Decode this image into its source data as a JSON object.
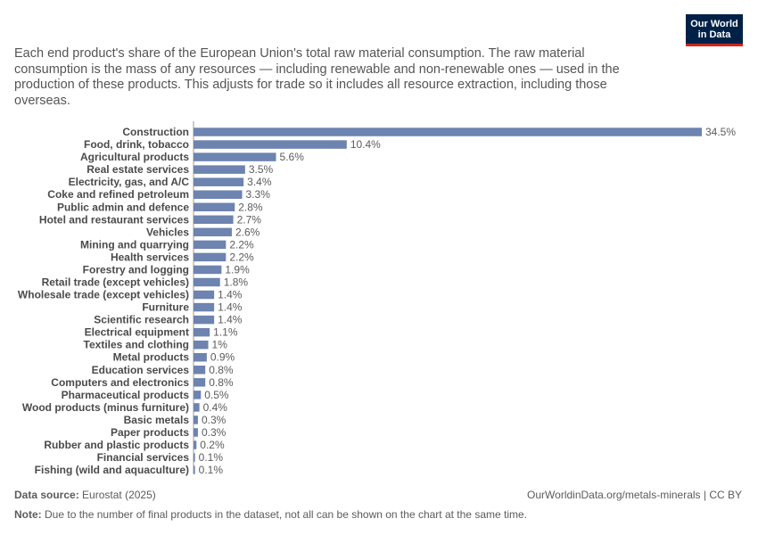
{
  "logo": {
    "line1": "Our World",
    "line2": "in Data"
  },
  "subtitle": "Each end product's share of the European Union's total raw material consumption. The raw material consumption is the mass of any resources — including renewable and non-renewable ones — used in the production of these products. This adjusts for trade so it includes all resource extraction, including those overseas.",
  "chart_data": {
    "type": "bar",
    "orientation": "horizontal",
    "bar_color": "#6d83b0",
    "value_suffix": "%",
    "categories": [
      "Construction",
      "Food, drink, tobacco",
      "Agricultural products",
      "Real estate services",
      "Electricity, gas, and A/C",
      "Coke and refined petroleum",
      "Public admin and defence",
      "Hotel and restaurant services",
      "Vehicles",
      "Mining and quarrying",
      "Health services",
      "Forestry and logging",
      "Retail trade (except vehicles)",
      "Wholesale trade (except vehicles)",
      "Furniture",
      "Scientific research",
      "Electrical equipment",
      "Textiles and clothing",
      "Metal products",
      "Education services",
      "Computers and electronics",
      "Pharmaceutical products",
      "Wood products (minus furniture)",
      "Basic metals",
      "Paper products",
      "Rubber and plastic products",
      "Financial services",
      "Fishing (wild and aquaculture)"
    ],
    "values": [
      34.5,
      10.4,
      5.6,
      3.5,
      3.4,
      3.3,
      2.8,
      2.7,
      2.6,
      2.2,
      2.2,
      1.9,
      1.8,
      1.4,
      1.4,
      1.4,
      1.1,
      1,
      0.9,
      0.8,
      0.8,
      0.5,
      0.4,
      0.3,
      0.3,
      0.2,
      0.1,
      0.1
    ]
  },
  "footer": {
    "source_label": "Data source:",
    "source_value": "Eurostat (2025)",
    "url": "OurWorldinData.org/metals-minerals | CC BY",
    "note_label": "Note:",
    "note_value": "Due to the number of final products in the dataset, not all can be shown on the chart at the same time."
  }
}
